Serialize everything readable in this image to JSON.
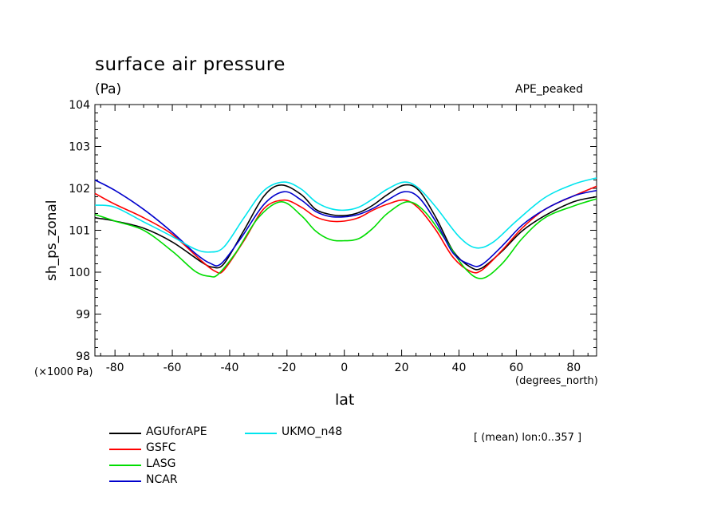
{
  "header": {
    "title": "surface air pressure",
    "units": "(Pa)",
    "experiment": "APE_peaked",
    "y_scale_note": "(×1000 Pa)",
    "x_units": "(degrees_north)",
    "mean_note": "[ (mean) lon:0..357 ]"
  },
  "chart_data": {
    "type": "line",
    "xlabel": "lat",
    "ylabel": "sh_ps_zonal",
    "xlim": [
      -87,
      88
    ],
    "ylim": [
      98,
      104
    ],
    "xticks": [
      -80,
      -60,
      -40,
      -20,
      0,
      20,
      40,
      60,
      80
    ],
    "xtick_labels": [
      "-80",
      "-60",
      "-40",
      "-20",
      "0",
      "20",
      "40",
      "60",
      "80"
    ],
    "yticks": [
      98,
      99,
      100,
      101,
      102,
      103,
      104
    ],
    "ytick_labels": [
      "98",
      "99",
      "100",
      "101",
      "102",
      "103",
      "104"
    ],
    "grid": false,
    "legend_position": "bottom-left",
    "series": [
      {
        "name": "AGUforAPE",
        "color": "#000000",
        "x": [
          -87,
          -80,
          -70,
          -60,
          -50,
          -46,
          -42,
          -35,
          -28,
          -22,
          -15,
          -10,
          -5,
          0,
          5,
          10,
          15,
          21,
          26,
          32,
          38,
          44,
          48,
          55,
          62,
          70,
          80,
          88
        ],
        "y": [
          101.3,
          101.22,
          101.05,
          100.72,
          100.25,
          100.12,
          100.2,
          101.0,
          101.82,
          102.08,
          101.85,
          101.5,
          101.38,
          101.35,
          101.42,
          101.6,
          101.85,
          102.08,
          101.95,
          101.3,
          100.5,
          100.12,
          100.1,
          100.5,
          100.98,
          101.35,
          101.68,
          101.8
        ]
      },
      {
        "name": "GSFC",
        "color": "#ff0000",
        "x": [
          -87,
          -80,
          -70,
          -60,
          -50,
          -45,
          -42,
          -35,
          -28,
          -21,
          -15,
          -10,
          -5,
          0,
          5,
          10,
          15,
          21,
          26,
          32,
          38,
          44,
          48,
          55,
          62,
          70,
          80,
          88
        ],
        "y": [
          101.88,
          101.62,
          101.3,
          100.9,
          100.28,
          100.02,
          100.05,
          100.75,
          101.52,
          101.72,
          101.55,
          101.32,
          101.22,
          101.22,
          101.3,
          101.48,
          101.62,
          101.72,
          101.52,
          101.0,
          100.35,
          100.02,
          100.05,
          100.52,
          101.05,
          101.5,
          101.82,
          102.05
        ]
      },
      {
        "name": "LASG",
        "color": "#00dd00",
        "x": [
          -87,
          -80,
          -70,
          -60,
          -52,
          -47,
          -44,
          -38,
          -30,
          -22,
          -15,
          -10,
          -5,
          0,
          5,
          10,
          15,
          22,
          28,
          35,
          42,
          48,
          55,
          62,
          70,
          80,
          88
        ],
        "y": [
          101.38,
          101.22,
          101.0,
          100.5,
          100.02,
          99.9,
          99.95,
          100.45,
          101.3,
          101.68,
          101.35,
          100.98,
          100.78,
          100.75,
          100.8,
          101.05,
          101.4,
          101.68,
          101.45,
          100.8,
          100.1,
          99.85,
          100.2,
          100.8,
          101.3,
          101.58,
          101.75
        ]
      },
      {
        "name": "NCAR",
        "color": "#0000cc",
        "x": [
          -87,
          -80,
          -70,
          -60,
          -52,
          -47,
          -43,
          -36,
          -28,
          -21,
          -15,
          -10,
          -5,
          0,
          5,
          10,
          15,
          21,
          26,
          32,
          38,
          44,
          48,
          55,
          62,
          70,
          80,
          88
        ],
        "y": [
          102.2,
          101.95,
          101.5,
          100.95,
          100.45,
          100.22,
          100.2,
          100.82,
          101.62,
          101.92,
          101.72,
          101.45,
          101.33,
          101.32,
          101.38,
          101.52,
          101.72,
          101.92,
          101.78,
          101.2,
          100.45,
          100.18,
          100.18,
          100.62,
          101.12,
          101.5,
          101.82,
          101.95
        ]
      },
      {
        "name": "UKMO_n48",
        "color": "#00e5ee",
        "x": [
          -87,
          -80,
          -70,
          -60,
          -52,
          -47,
          -42,
          -35,
          -28,
          -21,
          -15,
          -10,
          -5,
          0,
          5,
          10,
          15,
          21,
          26,
          32,
          40,
          46,
          52,
          60,
          70,
          80,
          88
        ],
        "y": [
          101.6,
          101.55,
          101.2,
          100.85,
          100.55,
          100.48,
          100.6,
          101.3,
          101.95,
          102.15,
          101.98,
          101.68,
          101.52,
          101.48,
          101.55,
          101.75,
          101.98,
          102.15,
          102.0,
          101.55,
          100.85,
          100.58,
          100.72,
          101.22,
          101.78,
          102.1,
          102.25
        ]
      }
    ]
  }
}
